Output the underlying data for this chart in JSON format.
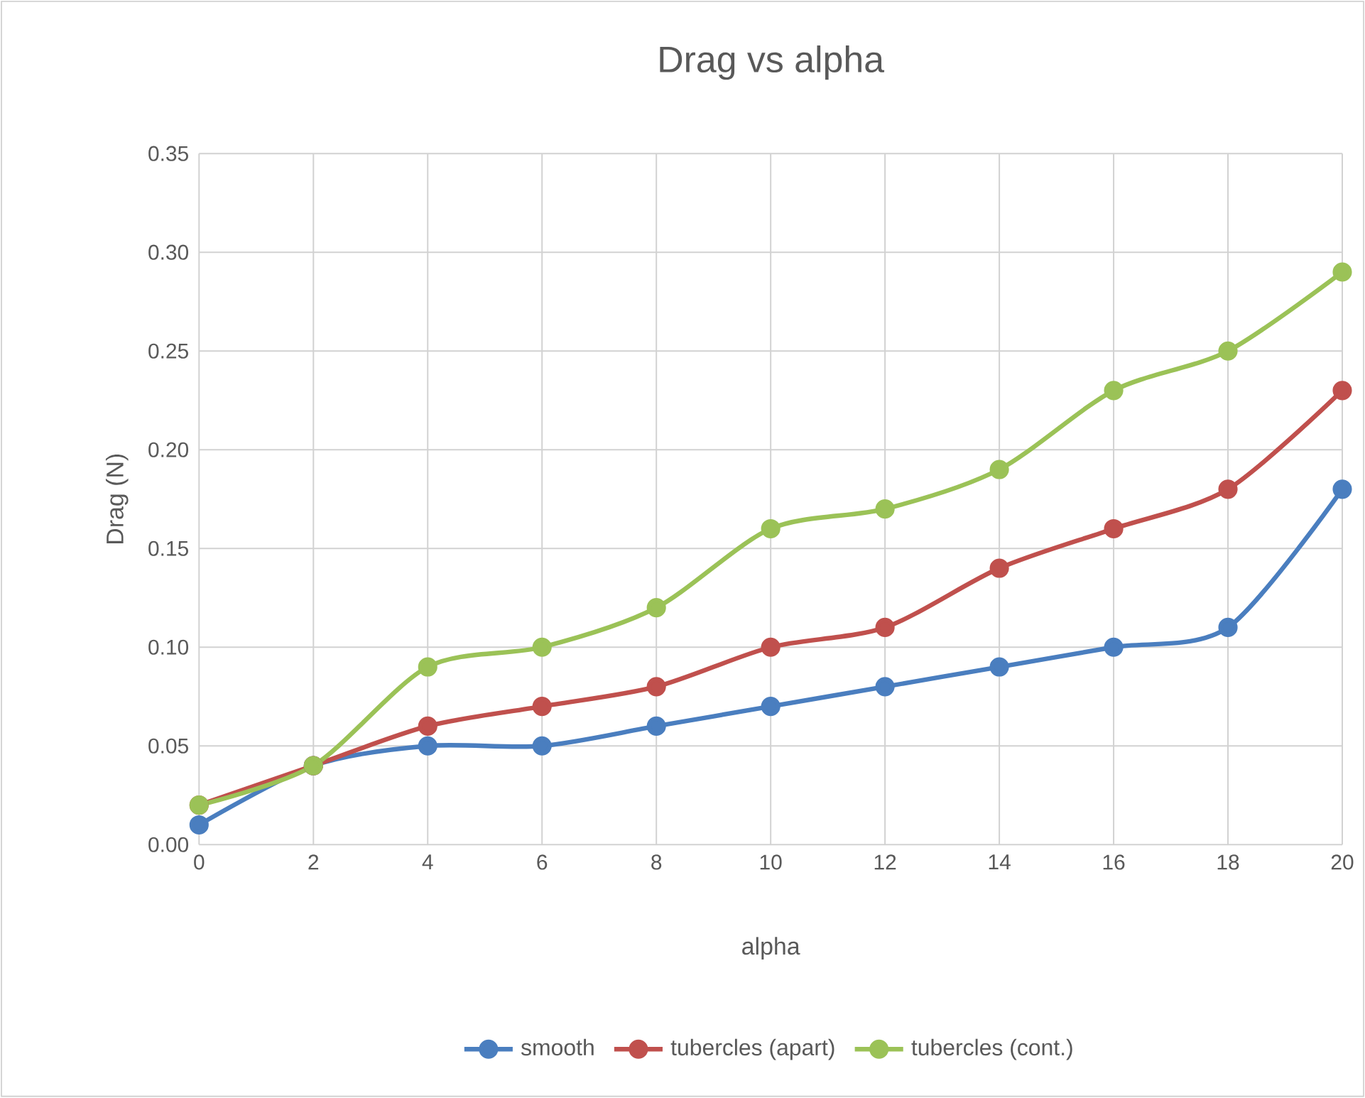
{
  "chart_data": {
    "type": "line",
    "title": "Drag vs alpha",
    "xlabel": "alpha",
    "ylabel": "Drag (N)",
    "x": [
      0,
      2,
      4,
      6,
      8,
      10,
      12,
      14,
      16,
      18,
      20
    ],
    "series": [
      {
        "name": "smooth",
        "color": "#4a7ebf",
        "values": [
          0.01,
          0.04,
          0.05,
          0.05,
          0.06,
          0.07,
          0.08,
          0.09,
          0.1,
          0.11,
          0.18
        ]
      },
      {
        "name": "tubercles (apart)",
        "color": "#c0504d",
        "values": [
          0.02,
          0.04,
          0.06,
          0.07,
          0.08,
          0.1,
          0.11,
          0.14,
          0.16,
          0.18,
          0.23
        ]
      },
      {
        "name": "tubercles (cont.)",
        "color": "#9bc257",
        "values": [
          0.02,
          0.04,
          0.09,
          0.1,
          0.12,
          0.16,
          0.17,
          0.19,
          0.23,
          0.25,
          0.29
        ]
      }
    ],
    "xlim": [
      0,
      20
    ],
    "xticks": [
      0,
      2,
      4,
      6,
      8,
      10,
      12,
      14,
      16,
      18,
      20
    ],
    "ylim": [
      0,
      0.35
    ],
    "yticks": [
      {
        "value": 0,
        "label": "0.00"
      },
      {
        "value": 0.05,
        "label": "0.05"
      },
      {
        "value": 0.1,
        "label": "0.10"
      },
      {
        "value": 0.15,
        "label": "0.15"
      },
      {
        "value": 0.2,
        "label": "0.20"
      },
      {
        "value": 0.25,
        "label": "0.25"
      },
      {
        "value": 0.3,
        "label": "0.30"
      },
      {
        "value": 0.35,
        "label": "0.35"
      }
    ],
    "grid": true,
    "legend": "bottom",
    "marker": "circle",
    "line_style": "solid"
  }
}
